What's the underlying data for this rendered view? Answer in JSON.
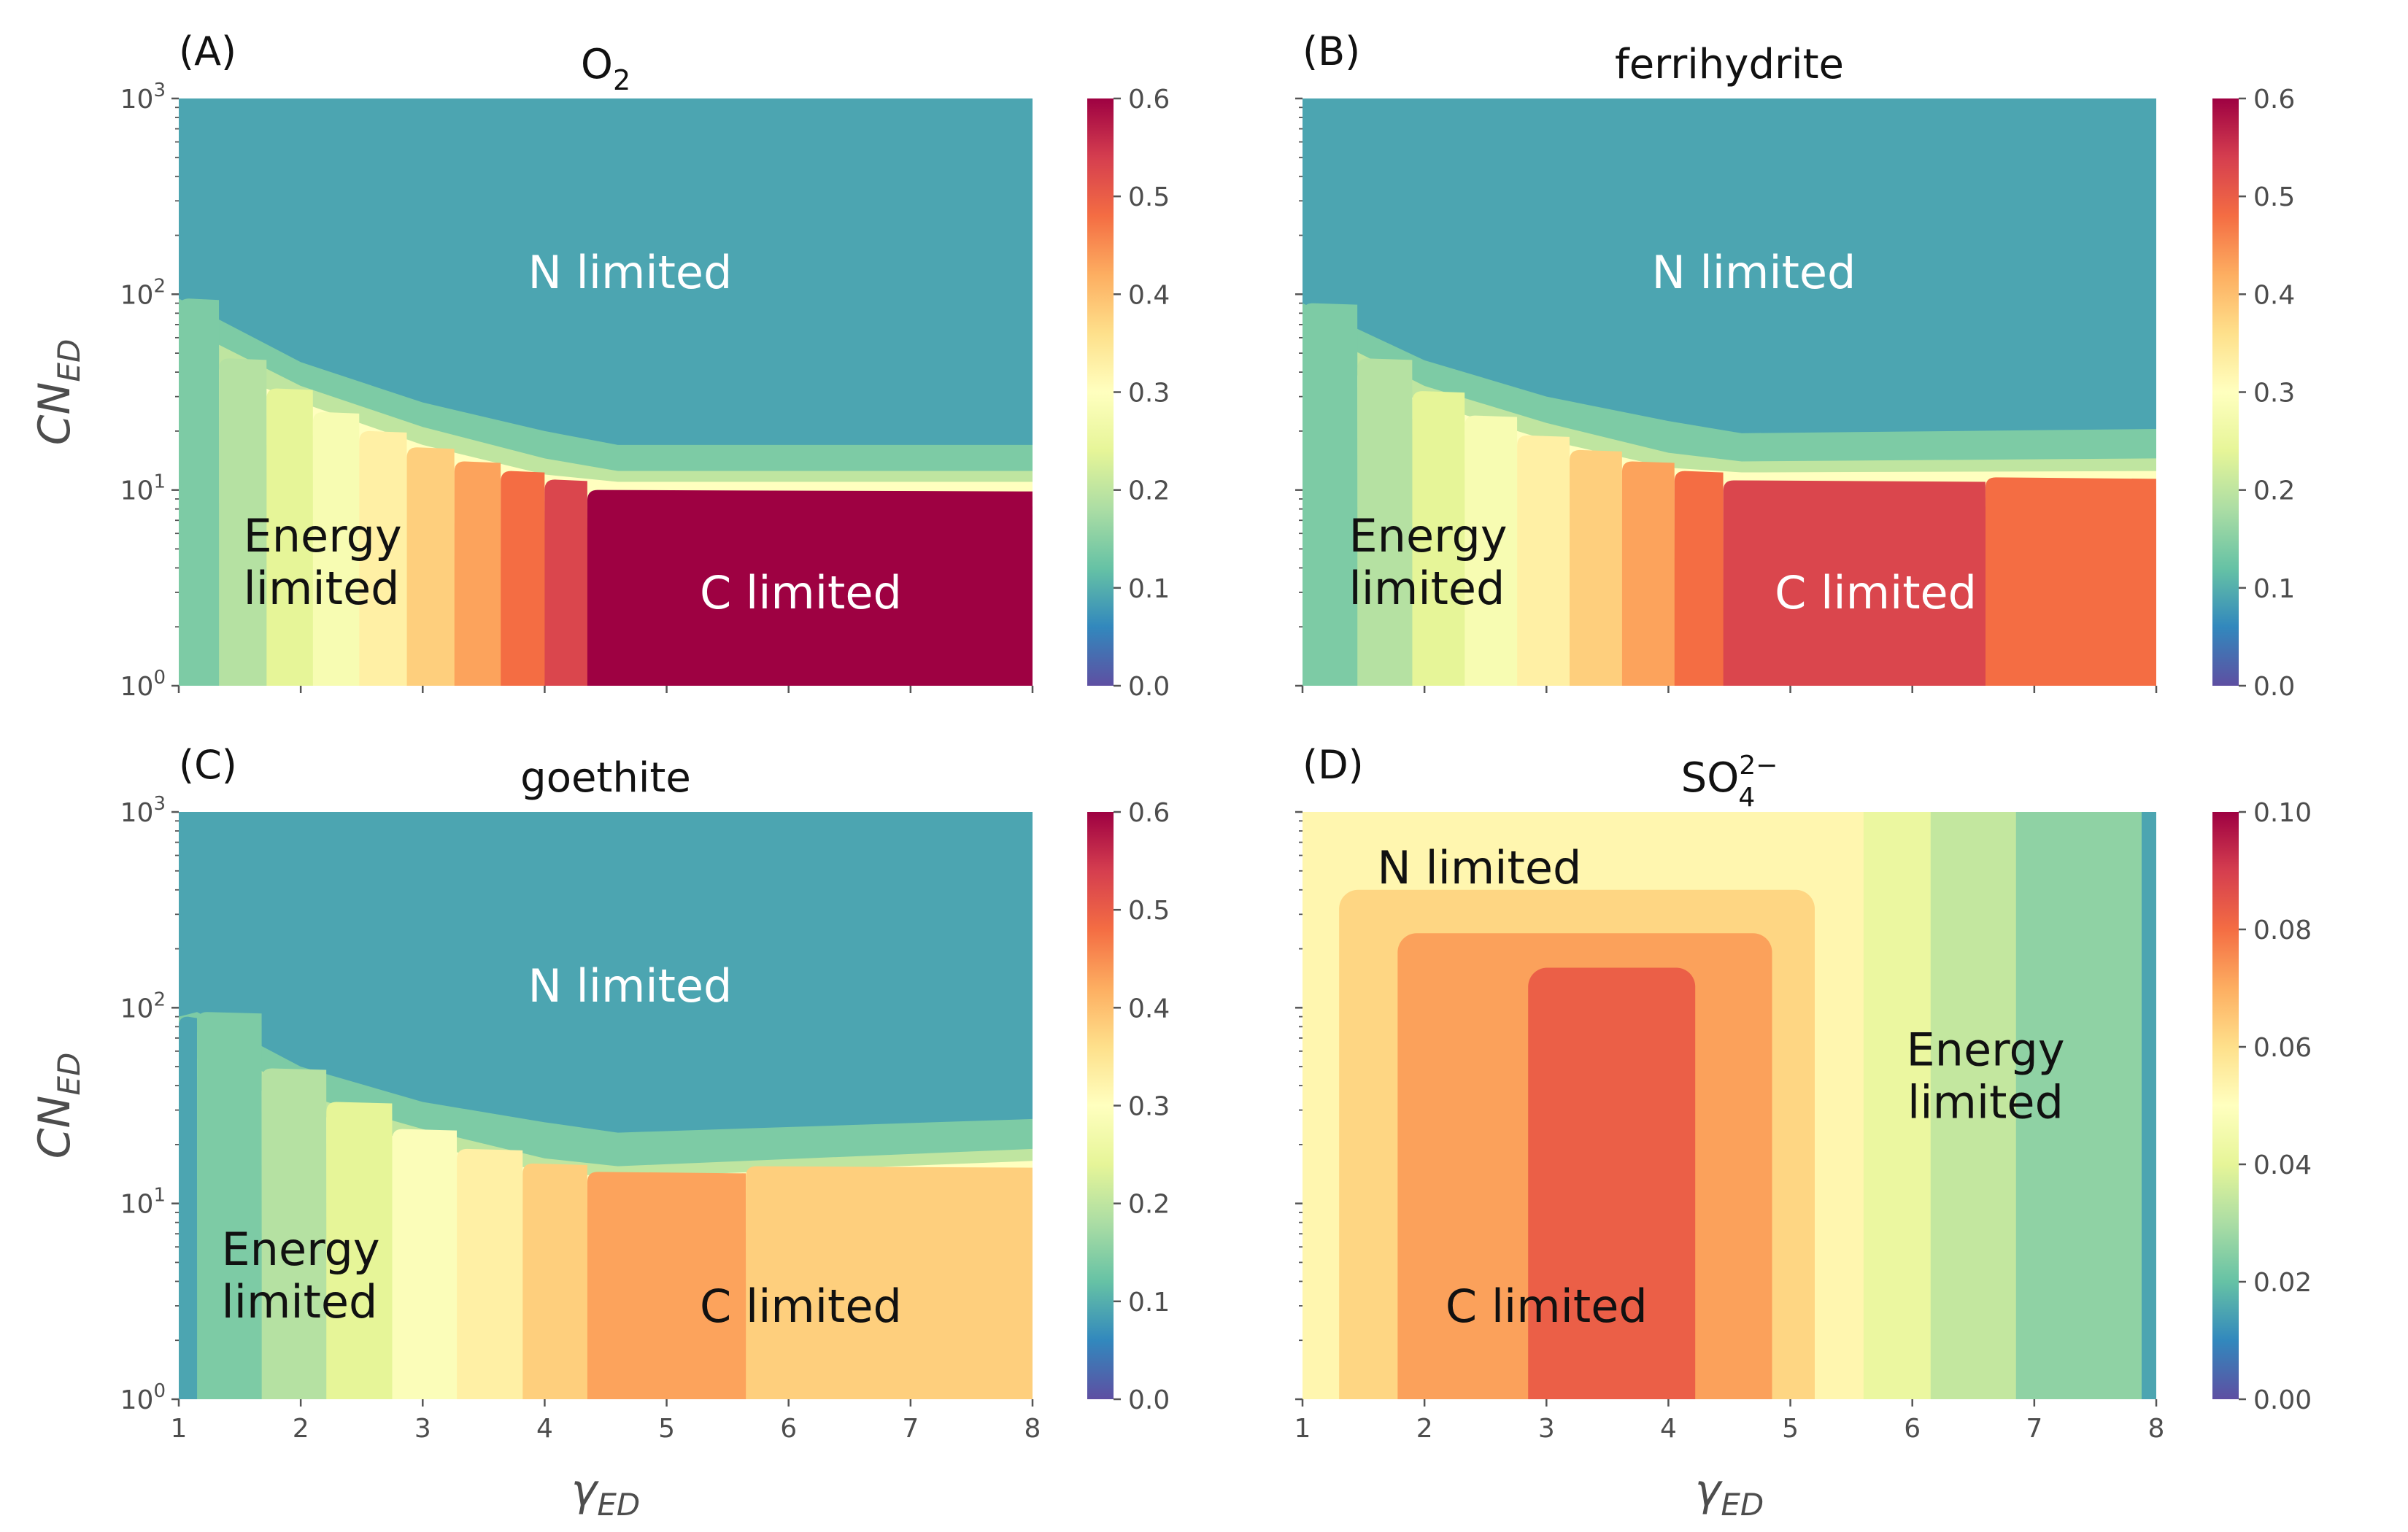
{
  "colors": {
    "spectral": [
      "#5e4fa2",
      "#3288bd",
      "#66c2a5",
      "#abdda4",
      "#e6f598",
      "#ffffbf",
      "#fee08b",
      "#fdae61",
      "#f46d43",
      "#d53e4f",
      "#9e0142"
    ],
    "region_light": "#ffffff",
    "region_dark": "#111111"
  },
  "axes": {
    "xlabel_main": "γ",
    "xlabel_sub": "ED",
    "ylabel_main": "CN",
    "ylabel_sub": "ED",
    "ytick_base": "10"
  },
  "chart_data": [
    {
      "type": "heatmap",
      "panel": "(A)",
      "title_main": "O",
      "title_sub": "2",
      "title_sup": "",
      "xlim": [
        1,
        8
      ],
      "ylim": [
        1,
        1000
      ],
      "yscale": "log",
      "xticks": [],
      "show_xticklabels": false,
      "show_xlabel": false,
      "yticks": [
        {
          "exp": "0"
        },
        {
          "exp": "1"
        },
        {
          "exp": "2"
        },
        {
          "exp": "3"
        }
      ],
      "show_ylabel": true,
      "background_value": 0.09,
      "colorbar": {
        "min": 0,
        "max": 0.6,
        "ticks": [
          "0.0",
          "0.1",
          "0.2",
          "0.3",
          "0.4",
          "0.5",
          "0.6"
        ]
      },
      "top_boundary": [
        [
          1.0,
          95
        ],
        [
          2,
          45
        ],
        [
          3,
          28
        ],
        [
          4,
          20
        ],
        [
          4.6,
          17
        ],
        [
          8,
          17
        ]
      ],
      "bands": [
        {
          "upper": [
            [
              1.0,
              95
            ],
            [
              2,
              45
            ],
            [
              3,
              28
            ],
            [
              4,
              20
            ],
            [
              4.6,
              17
            ],
            [
              8,
              17
            ]
          ],
          "value": 0.14
        },
        {
          "upper": [
            [
              1.0,
              70
            ],
            [
              2,
              34
            ],
            [
              3,
              21
            ],
            [
              4,
              14.5
            ],
            [
              4.6,
              12.5
            ],
            [
              8,
              12.5
            ]
          ],
          "value": 0.2
        },
        {
          "upper": [
            [
              1.0,
              50
            ],
            [
              2,
              28
            ],
            [
              3,
              17
            ],
            [
              4,
              12
            ],
            [
              4.6,
              11
            ],
            [
              8,
              11
            ]
          ],
          "value": 0.3
        }
      ],
      "strips": [
        {
          "x0": 1.0,
          "x1": 1.33,
          "top": 95,
          "value": 0.14
        },
        {
          "x0": 1.33,
          "x1": 1.72,
          "top": 47,
          "value": 0.19
        },
        {
          "x0": 1.72,
          "x1": 2.1,
          "top": 33,
          "value": 0.24
        },
        {
          "x0": 2.1,
          "x1": 2.48,
          "top": 25,
          "value": 0.28
        },
        {
          "x0": 2.48,
          "x1": 2.87,
          "top": 20,
          "value": 0.33
        },
        {
          "x0": 2.87,
          "x1": 3.26,
          "top": 16.5,
          "value": 0.38
        },
        {
          "x0": 3.26,
          "x1": 3.64,
          "top": 14,
          "value": 0.43
        },
        {
          "x0": 3.64,
          "x1": 4.0,
          "top": 12.5,
          "value": 0.48
        },
        {
          "x0": 4.0,
          "x1": 4.35,
          "top": 11.3,
          "value": 0.53
        },
        {
          "x0": 4.35,
          "x1": 8.0,
          "top": 10,
          "value": 0.6
        }
      ],
      "labels": [
        {
          "lines": [
            "N limited"
          ],
          "x": 4.7,
          "y": 130,
          "tone": "light"
        },
        {
          "lines": [
            "Energy",
            "limited"
          ],
          "x": 1.53,
          "y": 4.3,
          "tone": "dark",
          "align": "start"
        },
        {
          "lines": [
            "C limited"
          ],
          "x": 6.1,
          "y": 3.0,
          "tone": "light"
        }
      ]
    },
    {
      "type": "heatmap",
      "panel": "(B)",
      "title_main": "ferrihydrite",
      "title_sub": "",
      "title_sup": "",
      "xlim": [
        1,
        8
      ],
      "ylim": [
        1,
        1000
      ],
      "yscale": "log",
      "xticks": [],
      "show_xticklabels": false,
      "show_xlabel": false,
      "yticks": [
        {
          "exp": ""
        },
        {
          "exp": ""
        },
        {
          "exp": ""
        },
        {
          "exp": ""
        }
      ],
      "show_ylabel": false,
      "background_value": 0.09,
      "colorbar": {
        "min": 0,
        "max": 0.6,
        "ticks": [
          "0.0",
          "0.1",
          "0.2",
          "0.3",
          "0.4",
          "0.5",
          "0.6"
        ]
      },
      "top_boundary": [
        [
          1.0,
          90
        ],
        [
          2,
          46
        ],
        [
          3,
          30
        ],
        [
          4,
          22.5
        ],
        [
          4.6,
          19.5
        ],
        [
          8,
          20.5
        ]
      ],
      "bands": [
        {
          "upper": [
            [
              1.0,
              90
            ],
            [
              2,
              46
            ],
            [
              3,
              30
            ],
            [
              4,
              22.5
            ],
            [
              4.6,
              19.5
            ],
            [
              8,
              20.5
            ]
          ],
          "value": 0.14
        },
        {
          "upper": [
            [
              1.0,
              70
            ],
            [
              2,
              34
            ],
            [
              3,
              22
            ],
            [
              4,
              15.5
            ],
            [
              4.6,
              14
            ],
            [
              8,
              14.5
            ]
          ],
          "value": 0.2
        },
        {
          "upper": [
            [
              1.0,
              50
            ],
            [
              2,
              28
            ],
            [
              3,
              18
            ],
            [
              4,
              13
            ],
            [
              4.6,
              12.3
            ],
            [
              8,
              12.5
            ]
          ],
          "value": 0.3
        }
      ],
      "strips": [
        {
          "x0": 1.0,
          "x1": 1.45,
          "top": 90,
          "value": 0.14
        },
        {
          "x0": 1.45,
          "x1": 1.9,
          "top": 47,
          "value": 0.19
        },
        {
          "x0": 1.9,
          "x1": 2.33,
          "top": 32,
          "value": 0.24
        },
        {
          "x0": 2.33,
          "x1": 2.76,
          "top": 24,
          "value": 0.28
        },
        {
          "x0": 2.76,
          "x1": 3.19,
          "top": 19,
          "value": 0.33
        },
        {
          "x0": 3.19,
          "x1": 3.62,
          "top": 16,
          "value": 0.38
        },
        {
          "x0": 3.62,
          "x1": 4.05,
          "top": 14,
          "value": 0.43
        },
        {
          "x0": 4.05,
          "x1": 4.45,
          "top": 12.5,
          "value": 0.48
        },
        {
          "x0": 4.45,
          "x1": 6.6,
          "top": 11.2,
          "value": 0.53
        },
        {
          "x0": 6.6,
          "x1": 8.0,
          "top": 11.6,
          "value": 0.48
        }
      ],
      "labels": [
        {
          "lines": [
            "N limited"
          ],
          "x": 4.7,
          "y": 130,
          "tone": "light"
        },
        {
          "lines": [
            "Energy",
            "limited"
          ],
          "x": 1.38,
          "y": 4.3,
          "tone": "dark",
          "align": "start"
        },
        {
          "lines": [
            "C limited"
          ],
          "x": 5.7,
          "y": 3.0,
          "tone": "light"
        }
      ]
    },
    {
      "type": "heatmap",
      "panel": "(C)",
      "title_main": "goethite",
      "title_sub": "",
      "title_sup": "",
      "xlim": [
        1,
        8
      ],
      "ylim": [
        1,
        1000
      ],
      "yscale": "log",
      "xticks": [
        "1",
        "2",
        "3",
        "4",
        "5",
        "6",
        "7",
        "8"
      ],
      "show_xticklabels": true,
      "show_xlabel": true,
      "yticks": [
        {
          "exp": "0"
        },
        {
          "exp": "1"
        },
        {
          "exp": "2"
        },
        {
          "exp": "3"
        }
      ],
      "show_ylabel": true,
      "background_value": 0.09,
      "colorbar": {
        "min": 0,
        "max": 0.6,
        "ticks": [
          "0.0",
          "0.1",
          "0.2",
          "0.3",
          "0.4",
          "0.5",
          "0.6"
        ]
      },
      "top_boundary": [
        [
          1.0,
          90
        ],
        [
          1.15,
          95
        ],
        [
          2,
          50
        ],
        [
          3,
          33
        ],
        [
          4,
          26
        ],
        [
          4.6,
          23
        ],
        [
          8,
          27
        ]
      ],
      "bands": [
        {
          "upper": [
            [
              1.0,
              90
            ],
            [
              1.15,
              95
            ],
            [
              2,
              50
            ],
            [
              3,
              33
            ],
            [
              4,
              26
            ],
            [
              4.6,
              23
            ],
            [
              8,
              27
            ]
          ],
          "value": 0.14
        },
        {
          "upper": [
            [
              1.0,
              70
            ],
            [
              1.15,
              75
            ],
            [
              2,
              36
            ],
            [
              3,
              24
            ],
            [
              4,
              17
            ],
            [
              4.6,
              15.5
            ],
            [
              8,
              19
            ]
          ],
          "value": 0.2
        },
        {
          "upper": [
            [
              1.0,
              50
            ],
            [
              1.15,
              55
            ],
            [
              2,
              30
            ],
            [
              3,
              20
            ],
            [
              4,
              14.5
            ],
            [
              4.6,
              13.6
            ],
            [
              8,
              16.5
            ]
          ],
          "value": 0.3
        }
      ],
      "strips": [
        {
          "x0": 1.0,
          "x1": 1.15,
          "top": 90,
          "value": 0.09
        },
        {
          "x0": 1.15,
          "x1": 1.68,
          "top": 95,
          "value": 0.14
        },
        {
          "x0": 1.68,
          "x1": 2.21,
          "top": 49,
          "value": 0.19
        },
        {
          "x0": 2.21,
          "x1": 2.75,
          "top": 33,
          "value": 0.24
        },
        {
          "x0": 2.75,
          "x1": 3.28,
          "top": 24,
          "value": 0.29
        },
        {
          "x0": 3.28,
          "x1": 3.82,
          "top": 19,
          "value": 0.33
        },
        {
          "x0": 3.82,
          "x1": 4.35,
          "top": 16,
          "value": 0.38
        },
        {
          "x0": 4.35,
          "x1": 5.65,
          "top": 14.5,
          "value": 0.43
        },
        {
          "x0": 5.65,
          "x1": 8.0,
          "top": 15.5,
          "value": 0.38
        }
      ],
      "labels": [
        {
          "lines": [
            "N limited"
          ],
          "x": 4.7,
          "y": 130,
          "tone": "light"
        },
        {
          "lines": [
            "Energy",
            "limited"
          ],
          "x": 1.35,
          "y": 4.3,
          "tone": "dark",
          "align": "start"
        },
        {
          "lines": [
            "C limited"
          ],
          "x": 6.1,
          "y": 3.0,
          "tone": "dark"
        }
      ]
    },
    {
      "type": "heatmap",
      "panel": "(D)",
      "title_main": "SO",
      "title_sub": "4",
      "title_sup": "2−",
      "xlim": [
        1,
        8
      ],
      "ylim": [
        1,
        1000
      ],
      "yscale": "log",
      "xticks": [
        "1",
        "2",
        "3",
        "4",
        "5",
        "6",
        "7",
        "8"
      ],
      "show_xticklabels": true,
      "show_xlabel": true,
      "yticks": [
        {
          "exp": ""
        },
        {
          "exp": ""
        },
        {
          "exp": ""
        },
        {
          "exp": ""
        }
      ],
      "show_ylabel": false,
      "background_value": 0.053,
      "colorbar": {
        "min": 0,
        "max": 0.1,
        "ticks": [
          "0.00",
          "0.02",
          "0.04",
          "0.06",
          "0.08",
          "0.10"
        ]
      },
      "top_boundary": [],
      "bands": [],
      "vstrips": [
        {
          "x0": 5.6,
          "x1": 6.15,
          "value": 0.042
        },
        {
          "x0": 6.15,
          "x1": 6.85,
          "value": 0.034
        },
        {
          "x0": 6.85,
          "x1": 7.88,
          "value": 0.026
        },
        {
          "x0": 7.88,
          "x1": 8.0,
          "value": 0.015
        }
      ],
      "blocks": [
        {
          "x0": 1.3,
          "x1": 5.2,
          "top": 400,
          "value": 0.062
        },
        {
          "x0": 1.78,
          "x1": 4.85,
          "top": 240,
          "value": 0.072
        },
        {
          "x0": 2.85,
          "x1": 4.22,
          "top": 160,
          "value": 0.083
        }
      ],
      "strips": [],
      "labels": [
        {
          "lines": [
            "N limited"
          ],
          "x": 2.45,
          "y": 520,
          "tone": "dark"
        },
        {
          "lines": [
            "Energy",
            "limited"
          ],
          "x": 6.6,
          "y": 45,
          "tone": "dark"
        },
        {
          "lines": [
            "C limited"
          ],
          "x": 3.0,
          "y": 3.0,
          "tone": "dark"
        }
      ]
    }
  ]
}
